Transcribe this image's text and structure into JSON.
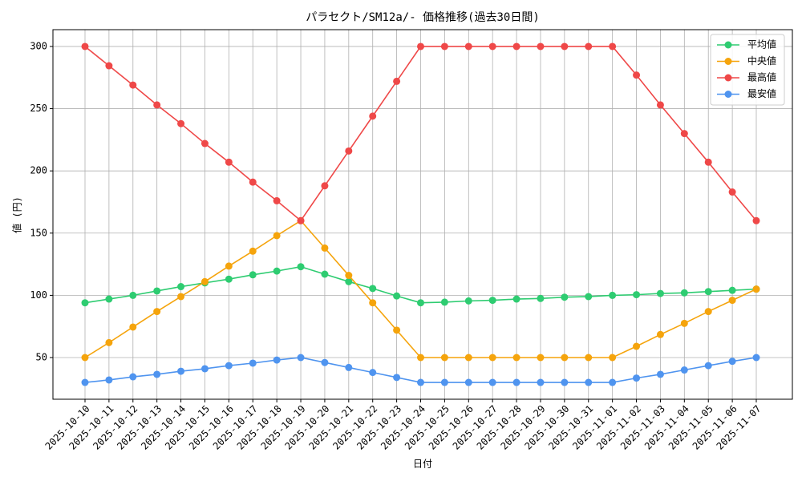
{
  "chart_data": {
    "type": "line",
    "title": "パラセクト/SM12a/- 価格推移(過去30日間)",
    "x_label": "日付",
    "y_label": "値 (円)",
    "categories": [
      "2025-10-10",
      "2025-10-11",
      "2025-10-12",
      "2025-10-13",
      "2025-10-14",
      "2025-10-15",
      "2025-10-16",
      "2025-10-17",
      "2025-10-18",
      "2025-10-19",
      "2025-10-20",
      "2025-10-21",
      "2025-10-22",
      "2025-10-23",
      "2025-10-24",
      "2025-10-25",
      "2025-10-26",
      "2025-10-27",
      "2025-10-28",
      "2025-10-29",
      "2025-10-30",
      "2025-10-31",
      "2025-11-01",
      "2025-11-02",
      "2025-11-03",
      "2025-11-04",
      "2025-11-05",
      "2025-11-06",
      "2025-11-07"
    ],
    "series": [
      {
        "name": "平均値",
        "color": "#2ecc71",
        "values": [
          94,
          97,
          100,
          103.5,
          107,
          110,
          113,
          116.5,
          119.5,
          123,
          117,
          111,
          105.5,
          99.5,
          94,
          94.5,
          95.5,
          96,
          97,
          97.5,
          98.5,
          99,
          100,
          100.5,
          101.5,
          102,
          103,
          104,
          105
        ]
      },
      {
        "name": "中央値",
        "color": "#f5a40c",
        "values": [
          50,
          62,
          74.5,
          87,
          99,
          111,
          123.5,
          135.5,
          148,
          160,
          138,
          116,
          94,
          72,
          50,
          50,
          50,
          50,
          50,
          50,
          50,
          50,
          50,
          59,
          68.5,
          77.5,
          87,
          96,
          105
        ]
      },
      {
        "name": "最高値",
        "color": "#ef4848",
        "values": [
          300,
          284.5,
          269,
          253,
          238,
          222,
          207,
          191,
          176,
          160,
          188,
          216,
          244,
          272,
          300,
          300,
          300,
          300,
          300,
          300,
          300,
          300,
          300,
          277,
          253,
          230,
          207,
          183,
          160
        ]
      },
      {
        "name": "最安値",
        "color": "#4f94ef",
        "values": [
          30,
          32,
          34.5,
          36.5,
          39,
          41,
          43.5,
          45.5,
          48,
          50,
          46,
          42,
          38,
          34,
          30,
          30,
          30,
          30,
          30,
          30,
          30,
          30,
          30,
          33.5,
          36.5,
          40,
          43.5,
          47,
          50
        ]
      }
    ],
    "ylim": [
      16.5,
      313.5
    ],
    "yticks": [
      50,
      100,
      150,
      200,
      250,
      300
    ],
    "grid": true,
    "legend": "upper-right"
  }
}
